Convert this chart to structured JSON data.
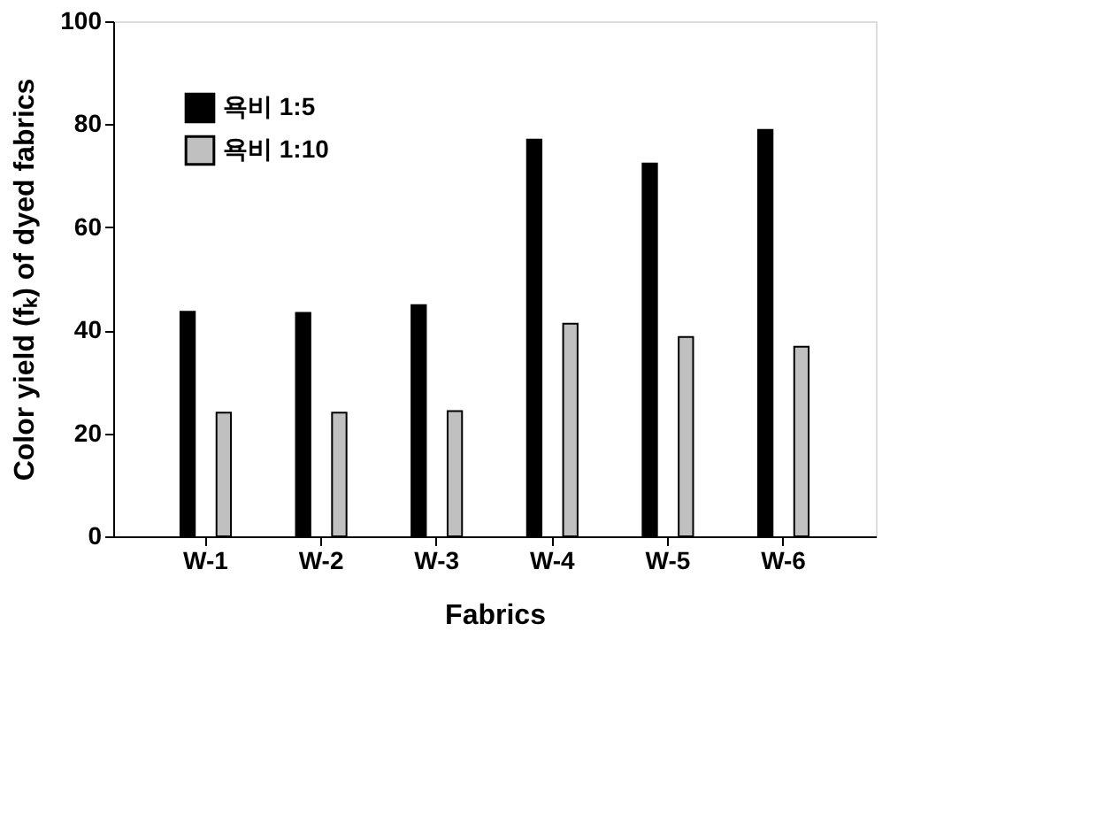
{
  "chart_data": {
    "type": "bar",
    "xlabel": "Fabrics",
    "ylabel": "Color yield (fₖ) of dyed fabrics",
    "categories": [
      "W-1",
      "W-2",
      "W-3",
      "W-4",
      "W-5",
      "W-6"
    ],
    "series": [
      {
        "name": "욕비 1:5",
        "color": "#000000",
        "values": [
          43.6,
          43.4,
          44.9,
          77.0,
          72.4,
          78.9
        ]
      },
      {
        "name": "욕비 1:10",
        "color": "#c0c0c0",
        "values": [
          24.0,
          24.0,
          24.3,
          41.3,
          38.7,
          36.8
        ]
      }
    ],
    "ylim": [
      0,
      100
    ],
    "yticks": [
      0,
      20,
      40,
      60,
      80,
      100
    ],
    "grid": false,
    "legend": "top left"
  }
}
